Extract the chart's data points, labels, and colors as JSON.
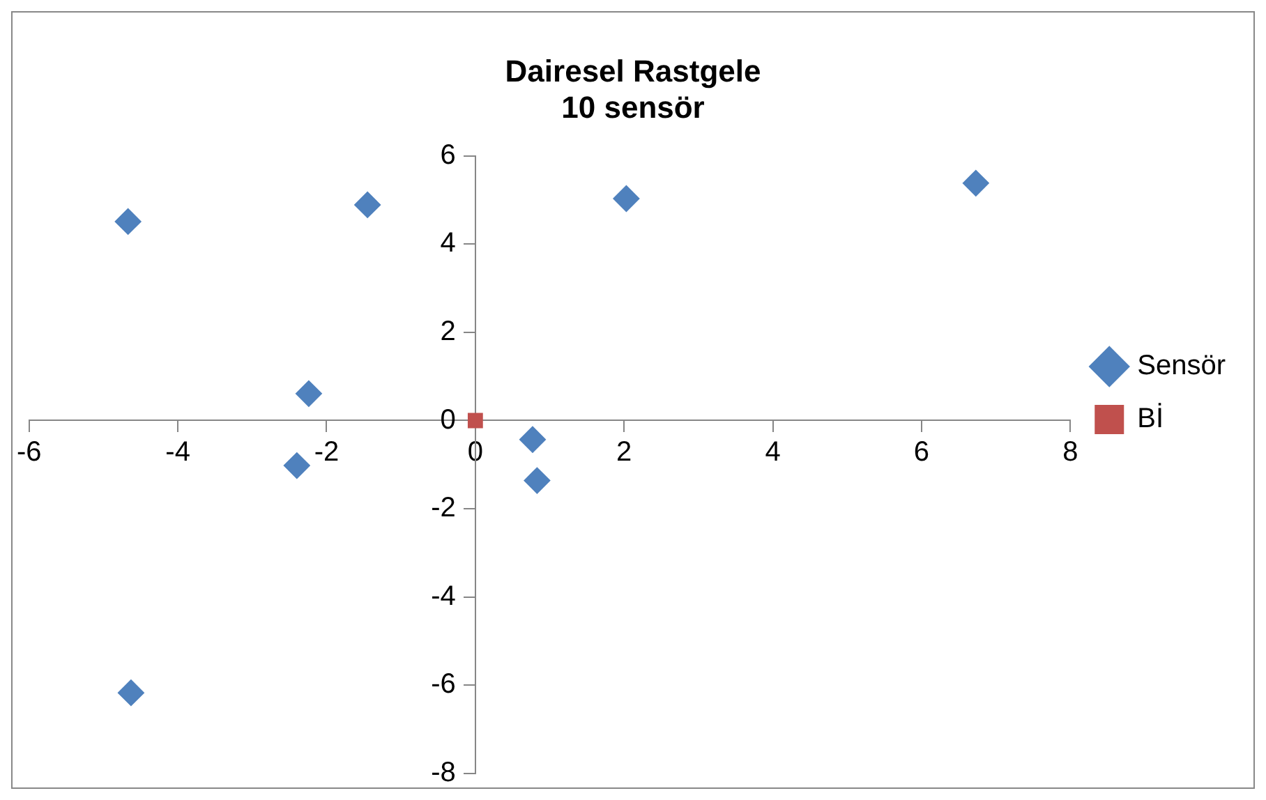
{
  "chart_data": {
    "type": "scatter",
    "title": [
      "Dairesel Rastgele",
      "10 sensör"
    ],
    "series": [
      {
        "name": "Sensör",
        "color": "#4f81bd",
        "marker": "diamond",
        "x": [
          -4.67,
          -1.45,
          2.03,
          6.73,
          -2.24,
          -2.4,
          0.77,
          0.83,
          -4.63
        ],
        "values": [
          4.51,
          4.89,
          5.03,
          5.38,
          0.61,
          -1.02,
          -0.43,
          -1.36,
          -6.17
        ]
      },
      {
        "name": "Bİ",
        "color": "#c0504d",
        "marker": "square",
        "x": [
          0
        ],
        "values": [
          0
        ]
      }
    ],
    "xlim": [
      -6,
      8
    ],
    "xticks": [
      -6,
      -4,
      -2,
      0,
      2,
      4,
      6,
      8
    ],
    "ylim": [
      -8,
      6
    ],
    "yticks": [
      -8,
      -6,
      -4,
      -2,
      0,
      2,
      4,
      6
    ],
    "grid": false,
    "legend": "right"
  }
}
